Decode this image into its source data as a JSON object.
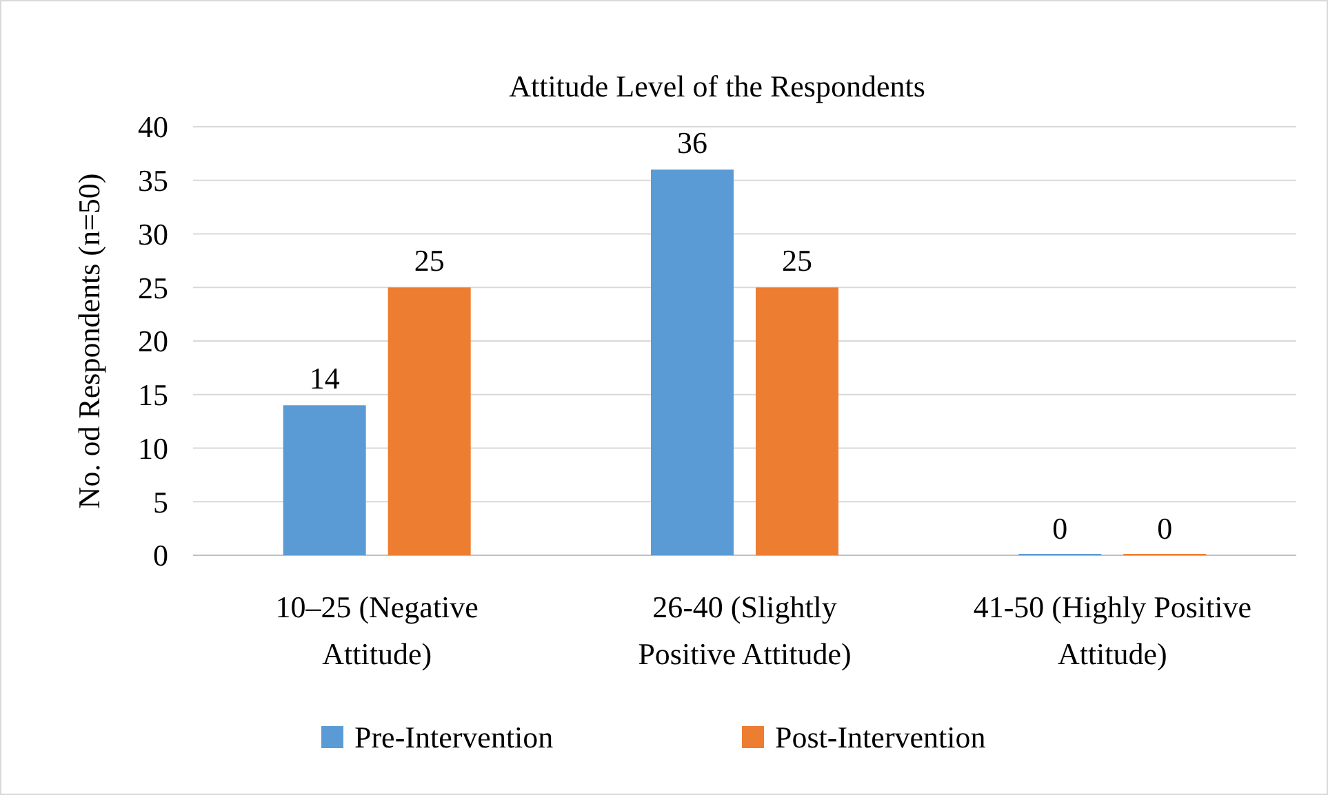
{
  "chart_data": {
    "type": "bar",
    "title": "Attitude Level of the Respondents",
    "ylabel": "No. od Respondents (n=50)",
    "categories": [
      "10–25 (Negative Attitude)",
      "26-40 (Slightly Positive Attitude)",
      "41-50 (Highly Positive Attitude)"
    ],
    "series": [
      {
        "name": "Pre-Intervention",
        "color": "#5b9bd5",
        "values": [
          14,
          36,
          0
        ]
      },
      {
        "name": "Post-Intervention",
        "color": "#ed7d31",
        "values": [
          25,
          25,
          0
        ]
      }
    ],
    "ylim": [
      0,
      40
    ],
    "yticks": [
      0,
      5,
      10,
      15,
      20,
      25,
      30,
      35,
      40
    ],
    "grid": "y",
    "legend": "bottom",
    "data_labels": true
  }
}
